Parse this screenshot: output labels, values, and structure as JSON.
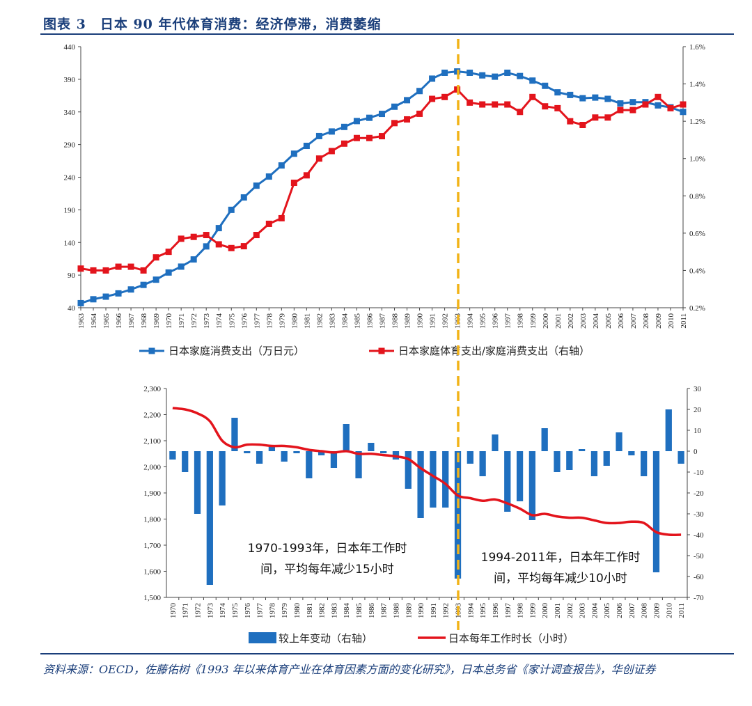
{
  "figure": {
    "title": "图表 3　日本 90 年代体育消费：经济停滞，消费萎缩",
    "source": "资料来源：OECD，佐藤佑树《1993 年以来体育产业在体育因素方面的变化研究》，日本总务省《家计调查报告》，华创证券"
  },
  "colors": {
    "blue": "#1f6fbf",
    "red": "#e3141c",
    "marker_line": "#f2b318",
    "title": "#1a3e7a"
  },
  "chart_data": [
    {
      "type": "line",
      "title": "",
      "x": [
        "1963",
        "1964",
        "1965",
        "1966",
        "1967",
        "1968",
        "1969",
        "1970",
        "1971",
        "1972",
        "1973",
        "1974",
        "1975",
        "1976",
        "1977",
        "1978",
        "1979",
        "1980",
        "1981",
        "1982",
        "1983",
        "1984",
        "1985",
        "1986",
        "1987",
        "1988",
        "1989",
        "1990",
        "1991",
        "1992",
        "1993",
        "1994",
        "1995",
        "1996",
        "1997",
        "1998",
        "1999",
        "2000",
        "2001",
        "2002",
        "2003",
        "2004",
        "2005",
        "2006",
        "2007",
        "2008",
        "2009",
        "2010",
        "2011"
      ],
      "y_left": {
        "ylim": [
          40,
          440
        ],
        "ticks": [
          "40",
          "90",
          "140",
          "190",
          "240",
          "290",
          "340",
          "390",
          "440"
        ]
      },
      "y_right": {
        "ylim": [
          0.2,
          1.6
        ],
        "ticks": [
          "0.2%",
          "0.4%",
          "0.6%",
          "0.8%",
          "1.0%",
          "1.2%",
          "1.4%",
          "1.6%"
        ]
      },
      "series": [
        {
          "name": "日本家庭消费支出（万日元）",
          "axis": "left",
          "color": "#1f6fbf",
          "values": [
            47,
            53,
            57,
            62,
            68,
            75,
            83,
            94,
            103,
            114,
            134,
            162,
            190,
            209,
            227,
            241,
            258,
            276,
            288,
            303,
            310,
            317,
            326,
            331,
            337,
            348,
            358,
            372,
            391,
            400,
            402,
            400,
            396,
            394,
            400,
            395,
            388,
            380,
            370,
            366,
            361,
            362,
            360,
            353,
            355,
            355,
            350,
            347,
            340
          ]
        },
        {
          "name": "日本家庭体育支出/家庭消费支出（右轴）",
          "axis": "right",
          "color": "#e3141c",
          "values": [
            0.41,
            0.4,
            0.4,
            0.42,
            0.42,
            0.4,
            0.47,
            0.5,
            0.57,
            0.58,
            0.59,
            0.54,
            0.52,
            0.53,
            0.59,
            0.65,
            0.68,
            0.87,
            0.91,
            1.0,
            1.04,
            1.08,
            1.11,
            1.11,
            1.12,
            1.19,
            1.21,
            1.24,
            1.32,
            1.33,
            1.37,
            1.3,
            1.29,
            1.29,
            1.29,
            1.25,
            1.33,
            1.28,
            1.27,
            1.2,
            1.18,
            1.22,
            1.22,
            1.26,
            1.26,
            1.29,
            1.33,
            1.27,
            1.29
          ]
        }
      ]
    },
    {
      "type": "bar",
      "title": "",
      "x": [
        "1970",
        "1971",
        "1972",
        "1973",
        "1974",
        "1975",
        "1976",
        "1977",
        "1978",
        "1979",
        "1980",
        "1981",
        "1982",
        "1983",
        "1984",
        "1985",
        "1986",
        "1987",
        "1988",
        "1989",
        "1990",
        "1991",
        "1992",
        "1993",
        "1994",
        "1995",
        "1996",
        "1997",
        "1998",
        "1999",
        "2000",
        "2001",
        "2002",
        "2003",
        "2004",
        "2005",
        "2006",
        "2007",
        "2008",
        "2009",
        "2010",
        "2011"
      ],
      "y_left": {
        "ylim": [
          1500,
          2300
        ],
        "ticks": [
          "1,500",
          "1,600",
          "1,700",
          "1,800",
          "1,900",
          "2,000",
          "2,100",
          "2,200",
          "2,300"
        ]
      },
      "y_right": {
        "ylim": [
          -70,
          30
        ],
        "ticks": [
          "-70",
          "-60",
          "-50",
          "-40",
          "-30",
          "-20",
          "-10",
          "0",
          "10",
          "20",
          "30"
        ]
      },
      "series": [
        {
          "name": "较上年变动（右轴）",
          "type": "bar",
          "axis": "right",
          "color": "#1f6fbf",
          "values": [
            -4,
            -10,
            -30,
            -64,
            -26,
            16,
            -1,
            -6,
            3,
            -5,
            -1,
            -13,
            -2,
            -8,
            13,
            -13,
            4,
            -1,
            -4,
            -18,
            -32,
            -27,
            -27,
            -61,
            -6,
            -12,
            8,
            -29,
            -24,
            -33,
            11,
            -10,
            -9,
            1,
            -12,
            -7,
            9,
            -2,
            -12,
            -58,
            20,
            -6
          ]
        },
        {
          "name": "日本每年工作时长（小时）",
          "type": "line",
          "axis": "left",
          "color": "#e3141c",
          "values": [
            2225,
            2220,
            2205,
            2175,
            2100,
            2075,
            2085,
            2085,
            2080,
            2080,
            2075,
            2065,
            2060,
            2055,
            2060,
            2050,
            2050,
            2045,
            2040,
            2030,
            1995,
            1965,
            1935,
            1890,
            1880,
            1870,
            1875,
            1860,
            1840,
            1815,
            1820,
            1810,
            1805,
            1805,
            1795,
            1785,
            1785,
            1790,
            1785,
            1750,
            1740,
            1740
          ]
        }
      ],
      "annotations": [
        "1970-1993年，日本年工作时",
        "间，平均每年减少15小时",
        "1994-2011年，日本年工作时",
        "间，平均每年减少10小时"
      ]
    }
  ]
}
